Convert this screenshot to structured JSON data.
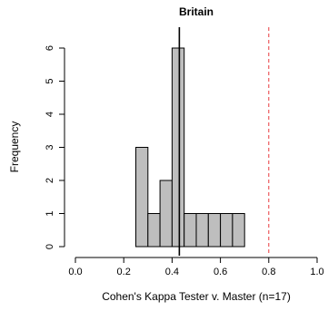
{
  "chart_data": {
    "type": "bar",
    "subtype": "histogram",
    "title": "Britain",
    "xlabel": "Cohen's Kappa Tester v. Master (n=17)",
    "ylabel": "Frequency",
    "xlim": [
      0.0,
      1.0
    ],
    "ylim": [
      0,
      6
    ],
    "x_ticks": [
      "0.0",
      "0.2",
      "0.4",
      "0.6",
      "0.8",
      "1.0"
    ],
    "y_ticks": [
      "0",
      "1",
      "2",
      "3",
      "4",
      "5",
      "6"
    ],
    "bins": [
      {
        "start": 0.25,
        "end": 0.3,
        "count": 3
      },
      {
        "start": 0.3,
        "end": 0.35,
        "count": 1
      },
      {
        "start": 0.35,
        "end": 0.4,
        "count": 2
      },
      {
        "start": 0.4,
        "end": 0.45,
        "count": 6
      },
      {
        "start": 0.45,
        "end": 0.5,
        "count": 1
      },
      {
        "start": 0.5,
        "end": 0.55,
        "count": 1
      },
      {
        "start": 0.55,
        "end": 0.6,
        "count": 1
      },
      {
        "start": 0.6,
        "end": 0.65,
        "count": 1
      },
      {
        "start": 0.65,
        "end": 0.7,
        "count": 1
      }
    ],
    "reference_lines": [
      {
        "x": 0.43,
        "style": "solid",
        "color": "#000000"
      },
      {
        "x": 0.8,
        "style": "dashed",
        "color": "#e8383d"
      }
    ],
    "bar_color": "#bebebe",
    "grid": false,
    "legend": "none"
  }
}
